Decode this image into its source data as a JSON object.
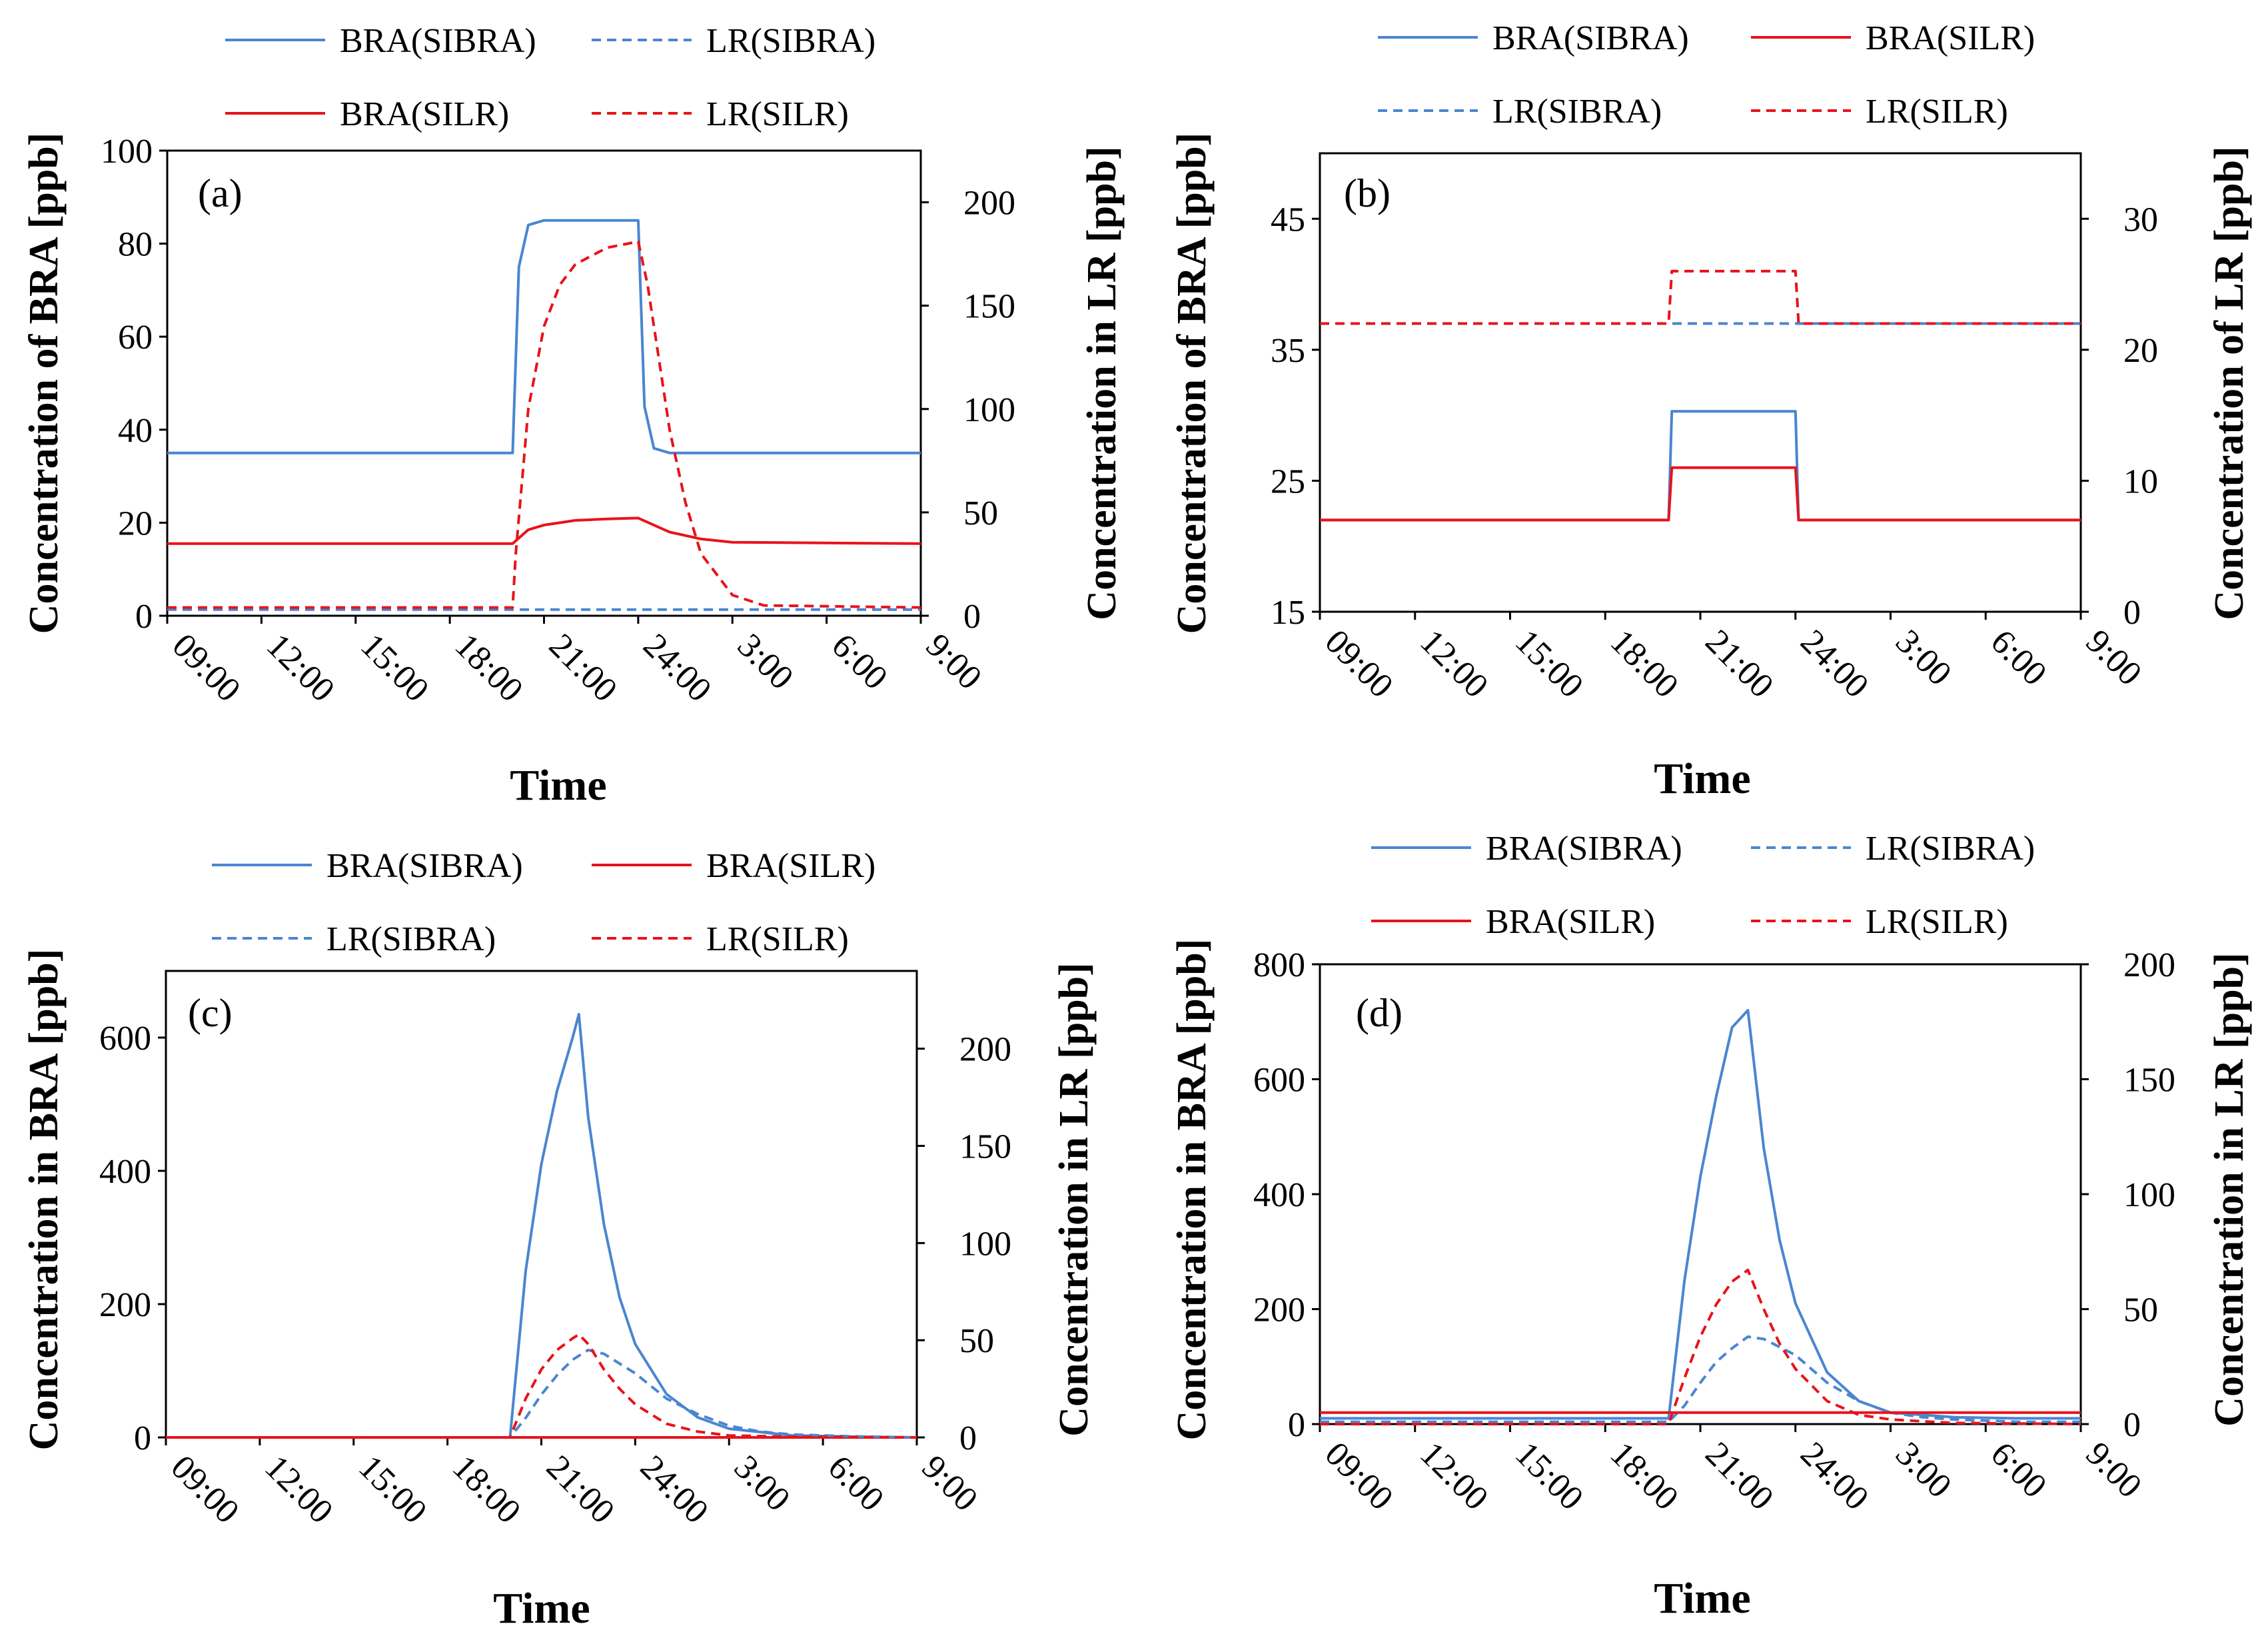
{
  "colors": {
    "blue": "#4A86D0",
    "red": "#E8131A",
    "axis": "#000000"
  },
  "chart_data": [
    {
      "type": "line",
      "panel_label": "(a)",
      "xlabel": "Time",
      "ylabel_left": "Concentration of BRA [ppb]",
      "ylabel_right": "Concentration in LR [ppb]",
      "x_ticks": [
        "09:00",
        "12:00",
        "15:00",
        "18:00",
        "21:00",
        "24:00",
        "3:00",
        "6:00",
        "9:00"
      ],
      "xlim_hours": [
        0,
        24
      ],
      "ylim_left": [
        0,
        100
      ],
      "yticks_left": [
        0,
        20,
        40,
        60,
        80,
        100
      ],
      "ylim_right": [
        0,
        225
      ],
      "yticks_right": [
        0,
        50,
        100,
        150,
        200
      ],
      "legend": [
        "BRA(SIBRA)",
        "LR(SIBRA)",
        "BRA(SILR)",
        "LR(SILR)"
      ],
      "series": [
        {
          "name": "BRA(SIBRA)",
          "axis": "left",
          "color": "blue",
          "dash": false,
          "x": [
            0,
            11,
            11.05,
            11.2,
            11.5,
            12,
            15,
            15.05,
            15.2,
            15.5,
            16,
            24
          ],
          "y": [
            35,
            35,
            45,
            75,
            84,
            85,
            85,
            75,
            45,
            36,
            35,
            35
          ]
        },
        {
          "name": "LR(SIBRA)",
          "axis": "right",
          "color": "blue",
          "dash": true,
          "x": [
            0,
            11,
            15,
            24
          ],
          "y": [
            3,
            3,
            3,
            3
          ]
        },
        {
          "name": "BRA(SILR)",
          "axis": "left",
          "color": "red",
          "dash": false,
          "x": [
            0,
            11,
            11.5,
            12,
            13,
            14,
            15,
            15.5,
            16,
            17,
            18,
            24
          ],
          "y": [
            15.5,
            15.5,
            18.5,
            19.5,
            20.5,
            20.8,
            21,
            19.5,
            18,
            16.5,
            15.8,
            15.5
          ]
        },
        {
          "name": "LR(SILR)",
          "axis": "right",
          "color": "red",
          "dash": true,
          "x": [
            0,
            11,
            11.1,
            11.5,
            12,
            12.5,
            13,
            14,
            15,
            15.3,
            15.7,
            16,
            16.5,
            17,
            18,
            19,
            24
          ],
          "y": [
            4,
            4,
            30,
            100,
            140,
            160,
            170,
            178,
            181,
            160,
            120,
            90,
            55,
            30,
            10,
            5,
            4
          ]
        }
      ]
    },
    {
      "type": "line",
      "panel_label": "(b)",
      "xlabel": "Time",
      "ylabel_left": "Concentration of BRA [ppb]",
      "ylabel_right": "Concentration of LR [ppb]",
      "x_ticks": [
        "09:00",
        "12:00",
        "15:00",
        "18:00",
        "21:00",
        "24:00",
        "3:00",
        "6:00",
        "9:00"
      ],
      "xlim_hours": [
        0,
        24
      ],
      "ylim_left": [
        15,
        50
      ],
      "yticks_left": [
        15,
        25,
        35,
        45
      ],
      "ylim_right": [
        0,
        35
      ],
      "yticks_right": [
        0,
        10,
        20,
        30
      ],
      "legend": [
        "BRA(SIBRA)",
        "BRA(SILR)",
        "LR(SIBRA)",
        "LR(SILR)"
      ],
      "series": [
        {
          "name": "BRA(SIBRA)",
          "axis": "left",
          "color": "blue",
          "dash": false,
          "x": [
            0,
            11,
            11.1,
            15,
            15.1,
            24
          ],
          "y": [
            22,
            22,
            30.3,
            30.3,
            22,
            22
          ]
        },
        {
          "name": "BRA(SILR)",
          "axis": "left",
          "color": "red",
          "dash": false,
          "x": [
            0,
            11,
            11.1,
            15,
            15.1,
            24
          ],
          "y": [
            22,
            22,
            26,
            26,
            22,
            22
          ]
        },
        {
          "name": "LR(SIBRA)",
          "axis": "right",
          "color": "blue",
          "dash": true,
          "x": [
            0,
            24
          ],
          "y": [
            22,
            22
          ]
        },
        {
          "name": "LR(SILR)",
          "axis": "right",
          "color": "red",
          "dash": true,
          "x": [
            0,
            11,
            11.1,
            15,
            15.1,
            24
          ],
          "y": [
            22,
            22,
            26,
            26,
            22,
            22
          ]
        }
      ]
    },
    {
      "type": "line",
      "panel_label": "(c)",
      "xlabel": "Time",
      "ylabel_left": "Concentration in BRA [ppb]",
      "ylabel_right": "Concentration in LR [ppb]",
      "x_ticks": [
        "09:00",
        "12:00",
        "15:00",
        "18:00",
        "21:00",
        "24:00",
        "3:00",
        "6:00",
        "9:00"
      ],
      "xlim_hours": [
        0,
        24
      ],
      "ylim_left": [
        0,
        700
      ],
      "yticks_left": [
        0,
        200,
        400,
        600
      ],
      "ylim_right": [
        0,
        240
      ],
      "yticks_right": [
        0,
        50,
        100,
        150,
        200
      ],
      "legend": [
        "BRA(SIBRA)",
        "BRA(SILR)",
        "LR(SIBRA)",
        "LR(SILR)"
      ],
      "series": [
        {
          "name": "BRA(SIBRA)",
          "axis": "left",
          "color": "blue",
          "dash": false,
          "x": [
            0,
            11,
            11.5,
            12,
            12.5,
            13,
            13.2,
            13.5,
            14,
            14.5,
            15,
            16,
            17,
            18,
            20,
            22,
            24
          ],
          "y": [
            0,
            0,
            250,
            410,
            520,
            600,
            635,
            480,
            320,
            210,
            140,
            65,
            30,
            13,
            3,
            1,
            0
          ]
        },
        {
          "name": "BRA(SILR)",
          "axis": "left",
          "color": "red",
          "dash": false,
          "x": [
            0,
            24
          ],
          "y": [
            0,
            0
          ]
        },
        {
          "name": "LR(SIBRA)",
          "axis": "right",
          "color": "blue",
          "dash": true,
          "x": [
            0,
            11,
            11.5,
            12,
            12.5,
            13,
            13.5,
            14,
            15,
            16,
            17,
            18,
            19,
            20,
            22,
            24
          ],
          "y": [
            0,
            0,
            10,
            22,
            32,
            40,
            45,
            43,
            33,
            20,
            12,
            6,
            3,
            1.5,
            0.5,
            0
          ]
        },
        {
          "name": "LR(SILR)",
          "axis": "right",
          "color": "red",
          "dash": true,
          "x": [
            0,
            11,
            11.5,
            12,
            12.5,
            13,
            13.2,
            13.5,
            14,
            14.5,
            15,
            16,
            17,
            18,
            20,
            24
          ],
          "y": [
            0,
            0,
            20,
            35,
            45,
            51,
            53,
            48,
            35,
            25,
            17,
            7,
            3,
            1,
            0.3,
            0
          ]
        }
      ]
    },
    {
      "type": "line",
      "panel_label": "(d)",
      "xlabel": "Time",
      "ylabel_left": "Concentration in BRA [ppb]",
      "ylabel_right": "Concentration in LR [ppb]",
      "x_ticks": [
        "09:00",
        "12:00",
        "15:00",
        "18:00",
        "21:00",
        "24:00",
        "3:00",
        "6:00",
        "9:00"
      ],
      "xlim_hours": [
        0,
        24
      ],
      "ylim_left": [
        0,
        800
      ],
      "yticks_left": [
        0,
        200,
        400,
        600,
        800
      ],
      "ylim_right": [
        0,
        200
      ],
      "yticks_right": [
        0,
        50,
        100,
        150,
        200
      ],
      "legend": [
        "BRA(SIBRA)",
        "LR(SIBRA)",
        "BRA(SILR)",
        "LR(SILR)"
      ],
      "series": [
        {
          "name": "BRA(SIBRA)",
          "axis": "left",
          "color": "blue",
          "dash": false,
          "x": [
            0,
            11,
            11.5,
            12,
            12.5,
            13,
            13.5,
            14,
            14.5,
            15,
            16,
            17,
            18,
            20,
            22,
            24
          ],
          "y": [
            10,
            10,
            250,
            430,
            570,
            690,
            720,
            480,
            320,
            210,
            90,
            40,
            20,
            12,
            10,
            10
          ]
        },
        {
          "name": "LR(SIBRA)",
          "axis": "right",
          "color": "blue",
          "dash": true,
          "x": [
            0,
            11,
            11.5,
            12,
            12.5,
            13,
            13.5,
            14,
            15,
            16,
            17,
            18,
            19,
            20,
            22,
            24
          ],
          "y": [
            1,
            1,
            8,
            18,
            27,
            33,
            38,
            37,
            30,
            18,
            10,
            5,
            3,
            2,
            1,
            1
          ]
        },
        {
          "name": "BRA(SILR)",
          "axis": "left",
          "color": "red",
          "dash": false,
          "x": [
            0,
            24
          ],
          "y": [
            20,
            20
          ]
        },
        {
          "name": "LR(SILR)",
          "axis": "right",
          "color": "red",
          "dash": true,
          "x": [
            0,
            11,
            11.5,
            12,
            12.5,
            13,
            13.5,
            14,
            14.5,
            15,
            16,
            17,
            18,
            20,
            24
          ],
          "y": [
            0,
            0,
            20,
            38,
            52,
            62,
            67,
            50,
            35,
            24,
            10,
            4,
            2,
            0.5,
            0
          ]
        }
      ]
    }
  ]
}
